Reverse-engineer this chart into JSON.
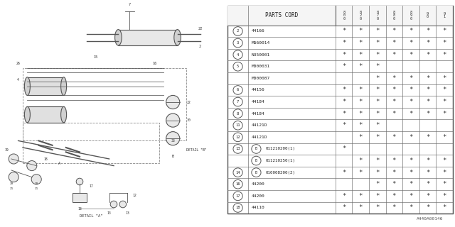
{
  "bg_color": "#ffffff",
  "line_color": "#666666",
  "text_color": "#333333",
  "rows": [
    {
      "num": "2",
      "part": "44166",
      "stars": [
        1,
        1,
        1,
        1,
        1,
        1,
        1
      ],
      "sub": false,
      "bpart": false,
      "show_circle": true
    },
    {
      "num": "3",
      "part": "M660014",
      "stars": [
        1,
        1,
        1,
        1,
        1,
        1,
        1
      ],
      "sub": false,
      "bpart": false,
      "show_circle": true
    },
    {
      "num": "4",
      "part": "N350001",
      "stars": [
        1,
        1,
        1,
        1,
        1,
        1,
        1
      ],
      "sub": false,
      "bpart": false,
      "show_circle": true
    },
    {
      "num": "5",
      "part": "M000031",
      "stars": [
        1,
        1,
        1,
        0,
        0,
        0,
        0
      ],
      "sub": false,
      "bpart": false,
      "show_circle": true
    },
    {
      "num": "5",
      "part": "M000087",
      "stars": [
        0,
        0,
        1,
        1,
        1,
        1,
        1
      ],
      "sub": true,
      "bpart": false,
      "show_circle": false
    },
    {
      "num": "6",
      "part": "44156",
      "stars": [
        1,
        1,
        1,
        1,
        1,
        1,
        1
      ],
      "sub": false,
      "bpart": false,
      "show_circle": true
    },
    {
      "num": "7",
      "part": "44184",
      "stars": [
        1,
        1,
        1,
        1,
        1,
        1,
        1
      ],
      "sub": false,
      "bpart": false,
      "show_circle": true
    },
    {
      "num": "8",
      "part": "44184",
      "stars": [
        1,
        1,
        1,
        1,
        1,
        1,
        1
      ],
      "sub": false,
      "bpart": false,
      "show_circle": true
    },
    {
      "num": "11",
      "part": "44121D",
      "stars": [
        1,
        1,
        1,
        0,
        0,
        0,
        0
      ],
      "sub": false,
      "bpart": false,
      "show_circle": true
    },
    {
      "num": "12",
      "part": "44121D",
      "stars": [
        0,
        1,
        1,
        1,
        1,
        1,
        1
      ],
      "sub": false,
      "bpart": false,
      "show_circle": true
    },
    {
      "num": "13",
      "part": "011210200(1)",
      "stars": [
        1,
        0,
        0,
        0,
        0,
        0,
        0
      ],
      "sub": false,
      "bpart": true,
      "show_circle": true
    },
    {
      "num": "13",
      "part": "011210250(1)",
      "stars": [
        0,
        1,
        1,
        1,
        1,
        1,
        1
      ],
      "sub": true,
      "bpart": true,
      "show_circle": false
    },
    {
      "num": "14",
      "part": "010008200(2)",
      "stars": [
        1,
        1,
        1,
        1,
        1,
        1,
        1
      ],
      "sub": false,
      "bpart": true,
      "show_circle": true
    },
    {
      "num": "16",
      "part": "44200",
      "stars": [
        0,
        0,
        1,
        1,
        1,
        1,
        1
      ],
      "sub": false,
      "bpart": false,
      "show_circle": true
    },
    {
      "num": "17",
      "part": "44200",
      "stars": [
        1,
        1,
        1,
        1,
        1,
        1,
        1
      ],
      "sub": false,
      "bpart": false,
      "show_circle": true
    },
    {
      "num": "18",
      "part": "44110",
      "stars": [
        1,
        1,
        1,
        1,
        1,
        1,
        1
      ],
      "sub": false,
      "bpart": false,
      "show_circle": true
    }
  ],
  "year_labels": [
    "8\n0\n0",
    "8\n2\n0",
    "8\n7\n0",
    "8\n8\n0",
    "8\n9\n0",
    "9\n0",
    "9\n1"
  ],
  "footer": "A440A00146"
}
